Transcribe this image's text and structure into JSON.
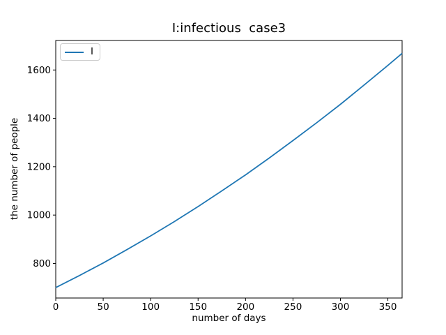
{
  "chart_data": {
    "type": "line",
    "title": "I:infectious  case3",
    "xlabel": "number of days",
    "ylabel": "the number of people",
    "xlim": [
      0,
      365
    ],
    "ylim": [
      657,
      1722
    ],
    "xticks": [
      0,
      50,
      100,
      150,
      200,
      250,
      300,
      350
    ],
    "yticks": [
      800,
      1000,
      1200,
      1400,
      1600
    ],
    "grid": false,
    "legend": {
      "position": "upper-left",
      "entries": [
        "I"
      ]
    },
    "series": [
      {
        "name": "I",
        "color": "#1f77b4",
        "x": [
          0,
          25,
          50,
          75,
          100,
          125,
          150,
          175,
          200,
          225,
          250,
          275,
          300,
          325,
          350,
          365
        ],
        "y": [
          700,
          750,
          802,
          857,
          914,
          973,
          1035,
          1100,
          1166,
          1236,
          1308,
          1382,
          1458,
          1538,
          1619,
          1669
        ]
      }
    ]
  },
  "colors": {
    "background": "#ffffff",
    "spine": "#000000",
    "text": "#000000",
    "legend_border": "#cccccc",
    "series_I": "#1f77b4"
  }
}
